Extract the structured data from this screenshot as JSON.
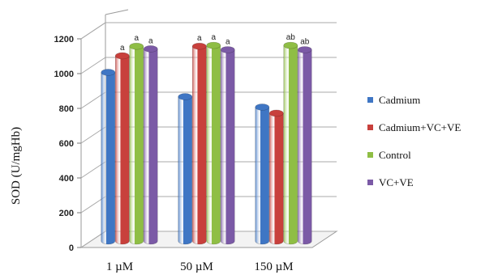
{
  "chart_data": {
    "type": "bar",
    "ylabel": "SOD (U/mgHb)",
    "xlabel": "",
    "title": "",
    "ylim": [
      0,
      1200
    ],
    "yticks": [
      0,
      200,
      400,
      600,
      800,
      1000,
      1200
    ],
    "grid": true,
    "legend_position": "right",
    "categories": [
      "1 µM",
      "50 µM",
      "150 µM"
    ],
    "series": [
      {
        "name": "Cadmium",
        "color": "#3f76c4",
        "values": [
          970,
          830,
          770
        ],
        "annotations": [
          "",
          "",
          ""
        ]
      },
      {
        "name": "Cadmium+VC+VE",
        "color": "#c8403c",
        "values": [
          1065,
          1120,
          735
        ],
        "annotations": [
          "a",
          "a",
          ""
        ]
      },
      {
        "name": "Control",
        "color": "#8fbe45",
        "values": [
          1120,
          1125,
          1125
        ],
        "annotations": [
          "a",
          "a",
          "ab"
        ]
      },
      {
        "name": "VC+VE",
        "color": "#7b5aa6",
        "values": [
          1105,
          1100,
          1100
        ],
        "annotations": [
          "a",
          "a",
          "ab"
        ]
      }
    ]
  }
}
